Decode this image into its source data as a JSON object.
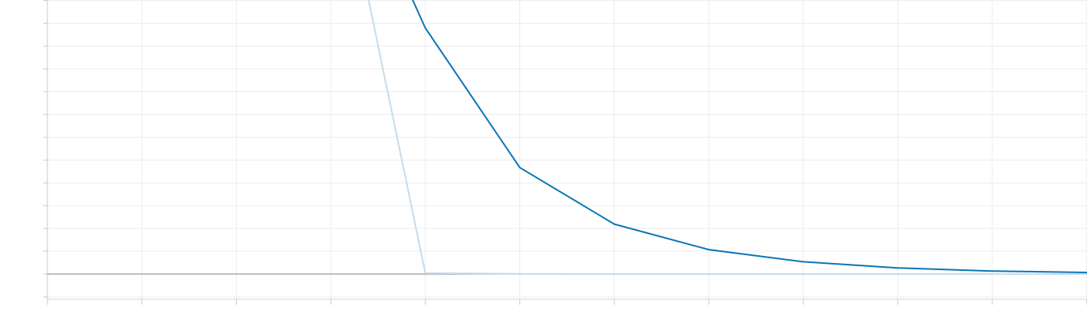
{
  "chart_data": {
    "type": "line",
    "title": "",
    "xlabel": "",
    "ylabel": "",
    "x": [
      0,
      1,
      2,
      3,
      4,
      5,
      6,
      7,
      8,
      9,
      10
    ],
    "xlim": [
      -2,
      11
    ],
    "ylim": [
      -1,
      12
    ],
    "grid": true,
    "legend": "none",
    "series": [
      {
        "values": [
          null,
          20,
          10.79,
          4.67,
          2.19,
          1.07,
          0.54,
          0.27,
          0.13,
          0.07,
          0.03
        ],
        "color": "#0b74b8"
      },
      {
        "values": [
          null,
          20,
          0.04,
          0.01,
          0.0,
          0.0,
          0.0,
          0.0,
          0.0,
          0.0,
          0.0
        ],
        "color": "#c6dced"
      }
    ]
  }
}
